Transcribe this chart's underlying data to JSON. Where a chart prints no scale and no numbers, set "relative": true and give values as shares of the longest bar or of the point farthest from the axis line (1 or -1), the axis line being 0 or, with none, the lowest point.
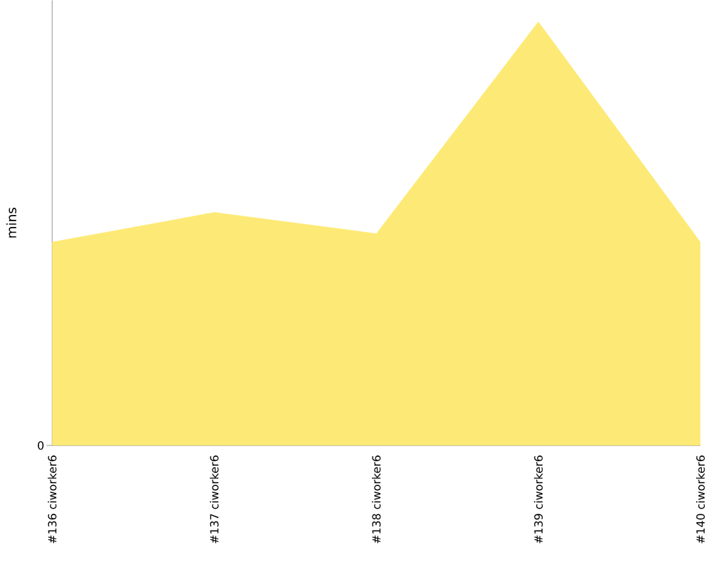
{
  "chart_data": {
    "type": "area",
    "ylabel": "mins",
    "relative": true,
    "categories": [
      "#136 ciworker6",
      "#137 ciworker6",
      "#138 ciworker6",
      "#139 ciworker6",
      "#140 ciworker6"
    ],
    "series": [
      {
        "color": "#fdea76",
        "values": [
          0.48,
          0.55,
          0.5,
          1,
          0.48
        ]
      }
    ],
    "annotations": [
      "0"
    ],
    "grid": false
  }
}
